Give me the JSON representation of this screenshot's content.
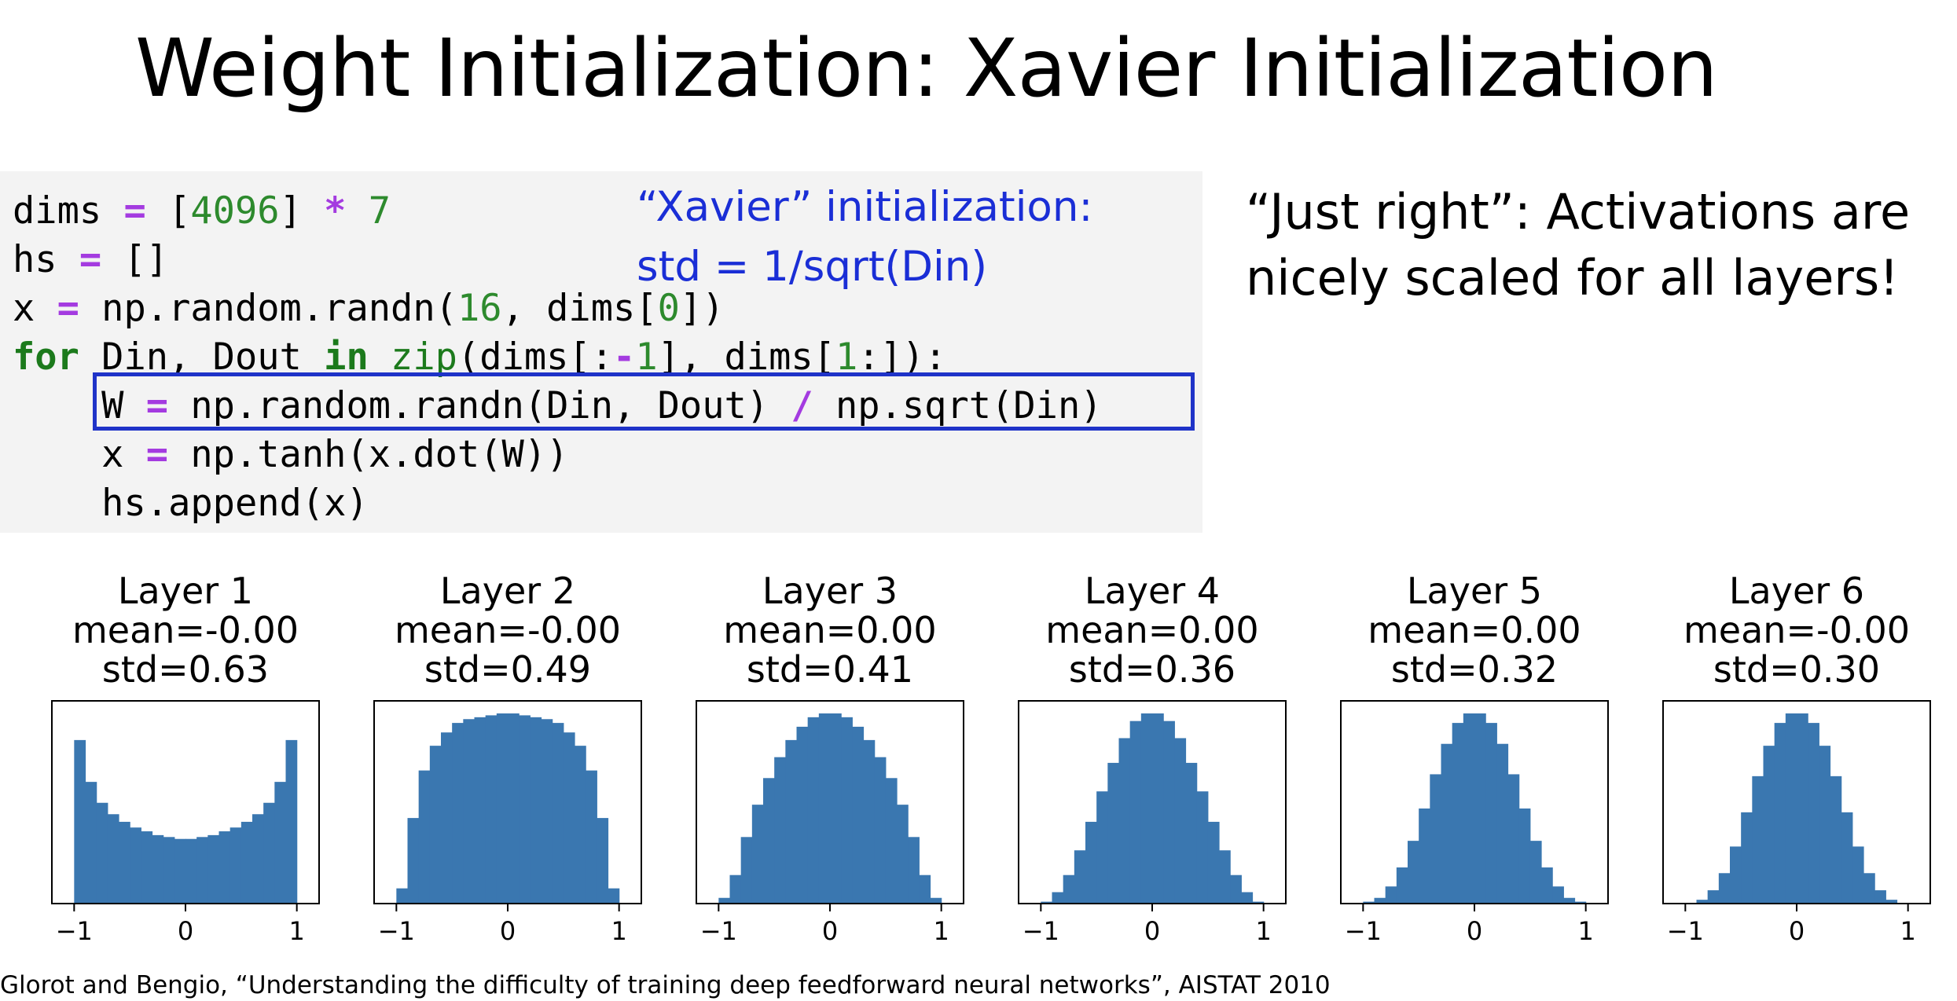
{
  "slide": {
    "title": "Weight Initialization: Xavier Initialization",
    "note_line1": "“Xavier” initialization:",
    "note_line2": "std = 1/sqrt(Din)",
    "right_line1": "“Just right”: Activations are",
    "right_line2": "nicely scaled for all layers!",
    "citation": "Glorot and Bengio, “Understanding the difficulty of training deep feedforward neural networks”, AISTAT 2010"
  },
  "code": {
    "lines": [
      [
        {
          "t": "dims ",
          "c": ""
        },
        {
          "t": "=",
          "c": "op"
        },
        {
          "t": " [",
          "c": ""
        },
        {
          "t": "4096",
          "c": "num"
        },
        {
          "t": "] ",
          "c": ""
        },
        {
          "t": "*",
          "c": "op"
        },
        {
          "t": " ",
          "c": ""
        },
        {
          "t": "7",
          "c": "num"
        }
      ],
      [
        {
          "t": "hs ",
          "c": ""
        },
        {
          "t": "=",
          "c": "op"
        },
        {
          "t": " []",
          "c": ""
        }
      ],
      [
        {
          "t": "x ",
          "c": ""
        },
        {
          "t": "=",
          "c": "op"
        },
        {
          "t": " np.random.randn(",
          "c": ""
        },
        {
          "t": "16",
          "c": "num"
        },
        {
          "t": ", dims[",
          "c": ""
        },
        {
          "t": "0",
          "c": "num"
        },
        {
          "t": "])",
          "c": ""
        }
      ],
      [
        {
          "t": "for",
          "c": "kw"
        },
        {
          "t": " Din, Dout ",
          "c": ""
        },
        {
          "t": "in",
          "c": "kw"
        },
        {
          "t": " ",
          "c": ""
        },
        {
          "t": "zip",
          "c": "fn"
        },
        {
          "t": "(dims[:",
          "c": ""
        },
        {
          "t": "-",
          "c": "op"
        },
        {
          "t": "1",
          "c": "num"
        },
        {
          "t": "], dims[",
          "c": ""
        },
        {
          "t": "1",
          "c": "num"
        },
        {
          "t": ":]):",
          "c": ""
        }
      ],
      [
        {
          "t": "    W ",
          "c": ""
        },
        {
          "t": "=",
          "c": "op"
        },
        {
          "t": " np.random.randn(Din, Dout) ",
          "c": ""
        },
        {
          "t": "/",
          "c": "op"
        },
        {
          "t": " np.sqrt(Din)",
          "c": ""
        }
      ],
      [
        {
          "t": "    x ",
          "c": ""
        },
        {
          "t": "=",
          "c": "op"
        },
        {
          "t": " np.tanh(x.dot(W))",
          "c": ""
        }
      ],
      [
        {
          "t": "    hs.append(x)",
          "c": ""
        }
      ]
    ]
  },
  "chart_data": {
    "type": "bar",
    "bar_color": "#3a77b0",
    "xlim": [
      -1.2,
      1.2
    ],
    "xticks": [
      "−1",
      "0",
      "1"
    ],
    "bin_edges": [
      -1,
      -0.9,
      -0.8,
      -0.7,
      -0.6,
      -0.5,
      -0.4,
      -0.3,
      -0.2,
      -0.1,
      0,
      0.1,
      0.2,
      0.3,
      0.4,
      0.5,
      0.6,
      0.7,
      0.8,
      0.9,
      1
    ],
    "panels": [
      {
        "title": "Layer 1",
        "mean": "mean=-0.00",
        "std": "std=0.63",
        "counts": [
          0.86,
          0.64,
          0.53,
          0.47,
          0.43,
          0.4,
          0.38,
          0.36,
          0.35,
          0.34,
          0.34,
          0.35,
          0.36,
          0.38,
          0.4,
          0.43,
          0.47,
          0.53,
          0.64,
          0.86
        ]
      },
      {
        "title": "Layer 2",
        "mean": "mean=-0.00",
        "std": "std=0.49",
        "counts": [
          0.08,
          0.45,
          0.7,
          0.83,
          0.9,
          0.95,
          0.97,
          0.98,
          0.99,
          1.0,
          1.0,
          0.99,
          0.98,
          0.97,
          0.95,
          0.9,
          0.83,
          0.7,
          0.45,
          0.08
        ]
      },
      {
        "title": "Layer 3",
        "mean": "mean=0.00",
        "std": "std=0.41",
        "counts": [
          0.03,
          0.15,
          0.35,
          0.52,
          0.66,
          0.77,
          0.86,
          0.93,
          0.98,
          1.0,
          1.0,
          0.98,
          0.93,
          0.86,
          0.77,
          0.66,
          0.52,
          0.35,
          0.15,
          0.03
        ]
      },
      {
        "title": "Layer 4",
        "mean": "mean=0.00",
        "std": "std=0.36",
        "counts": [
          0.01,
          0.06,
          0.15,
          0.28,
          0.43,
          0.59,
          0.74,
          0.87,
          0.96,
          1.0,
          1.0,
          0.96,
          0.87,
          0.74,
          0.59,
          0.43,
          0.28,
          0.15,
          0.06,
          0.01
        ]
      },
      {
        "title": "Layer 5",
        "mean": "mean=0.00",
        "std": "std=0.32",
        "counts": [
          0.01,
          0.03,
          0.09,
          0.19,
          0.33,
          0.5,
          0.68,
          0.84,
          0.95,
          1.0,
          1.0,
          0.95,
          0.84,
          0.68,
          0.5,
          0.33,
          0.19,
          0.09,
          0.03,
          0.01
        ]
      },
      {
        "title": "Layer 6",
        "mean": "mean=-0.00",
        "std": "std=0.30",
        "counts": [
          0.0,
          0.02,
          0.07,
          0.16,
          0.3,
          0.48,
          0.67,
          0.83,
          0.95,
          1.0,
          1.0,
          0.95,
          0.83,
          0.67,
          0.48,
          0.3,
          0.16,
          0.07,
          0.02,
          0.0
        ]
      }
    ]
  }
}
